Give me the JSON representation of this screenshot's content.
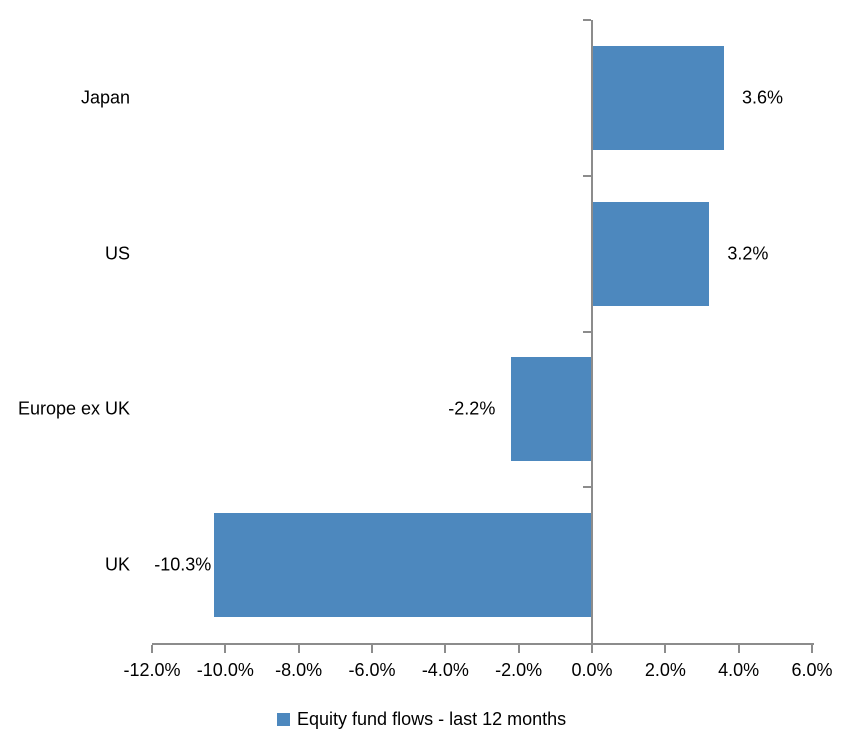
{
  "chart_data": {
    "type": "bar",
    "orientation": "horizontal",
    "title": "",
    "categories": [
      "Japan",
      "US",
      "Europe ex UK",
      "UK"
    ],
    "series": [
      {
        "name": "Equity fund flows - last 12 months",
        "values": [
          3.6,
          3.2,
          -2.2,
          -10.3
        ]
      }
    ],
    "data_labels": [
      "3.6%",
      "3.2%",
      "-2.2%",
      "-10.3%"
    ],
    "xlim": [
      -12,
      6
    ],
    "x_tick_values": [
      -12,
      -10,
      -8,
      -6,
      -4,
      -2,
      0,
      2,
      4,
      6
    ],
    "x_tick_labels": [
      "-12.0%",
      "-10.0%",
      "-8.0%",
      "-6.0%",
      "-4.0%",
      "-2.0%",
      "0.0%",
      "2.0%",
      "4.0%",
      "6.0%"
    ],
    "grid": false,
    "legend": {
      "position": "bottom",
      "label": "Equity fund flows - last 12 months"
    },
    "colors": {
      "bar": "#4d88be",
      "axis": "#8c8c8c",
      "text": "#000000",
      "background": "#ffffff"
    }
  }
}
